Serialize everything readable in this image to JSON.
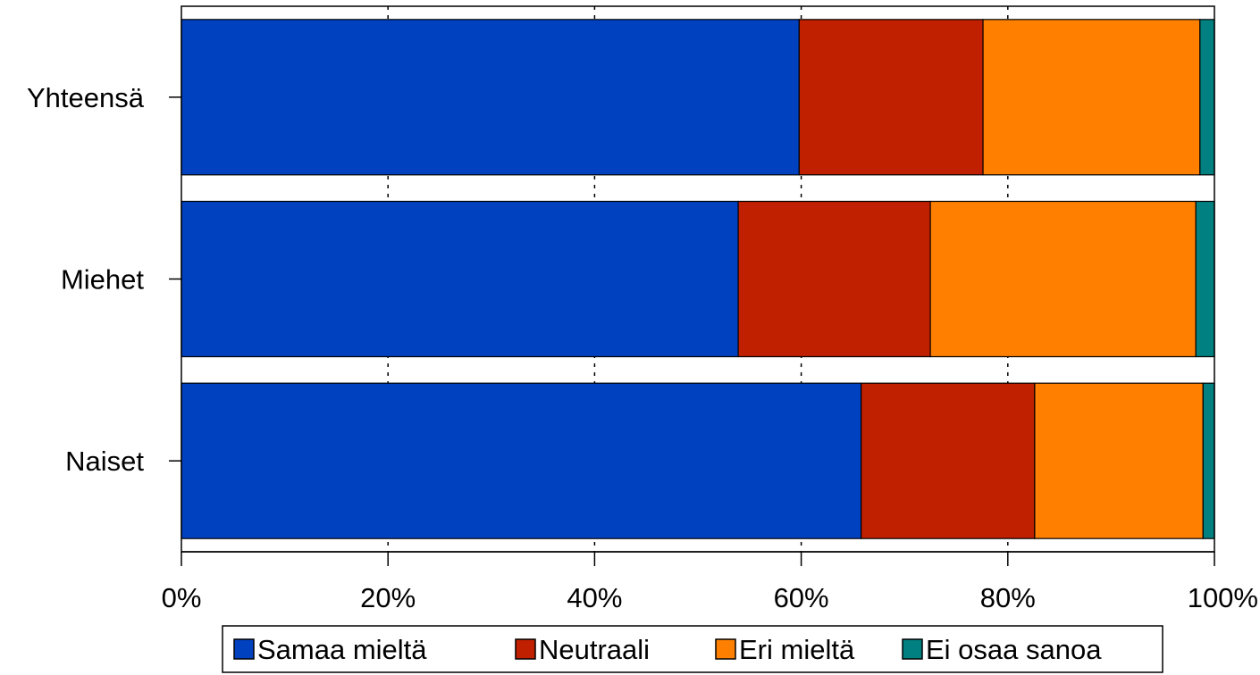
{
  "chart_data": {
    "type": "bar",
    "orientation": "horizontal",
    "stacked": true,
    "normalized": true,
    "categories": [
      "Yhteensä",
      "Miehet",
      "Naiset"
    ],
    "series": [
      {
        "name": "Samaa mieltä",
        "color": "#0041C0",
        "values": [
          59.8,
          53.9,
          65.8
        ]
      },
      {
        "name": "Neutraali",
        "color": "#C02000",
        "values": [
          17.8,
          18.6,
          16.8
        ]
      },
      {
        "name": "Eri mieltä",
        "color": "#FF8000",
        "values": [
          21.0,
          25.7,
          16.3
        ]
      },
      {
        "name": "Ei osaa sanoa",
        "color": "#008080",
        "values": [
          1.4,
          1.8,
          1.1
        ]
      }
    ],
    "x_ticks": [
      "0%",
      "20%",
      "40%",
      "60%",
      "80%",
      "100%"
    ],
    "xlim": [
      0,
      100
    ],
    "grid": "vertical dashed",
    "legend_position": "bottom"
  }
}
